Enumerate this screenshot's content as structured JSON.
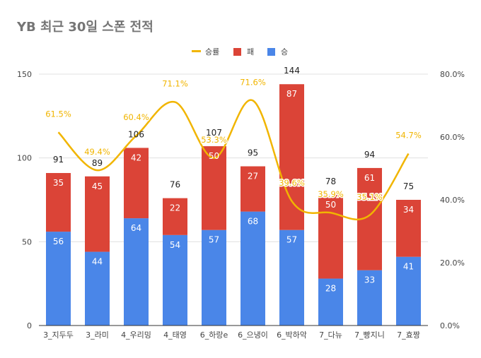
{
  "chart_data": {
    "type": "bar",
    "stacked": true,
    "title": "YB 최근 30일 스폰 전적",
    "categories": [
      "3_지두두",
      "3_라미",
      "4_우리밍",
      "4_태영",
      "6_하랑e",
      "6_으냉이",
      "6_박하악",
      "7_다뉴",
      "7_빵지니",
      "7_효짱"
    ],
    "series": [
      {
        "name": "승",
        "color": "#4a86e8",
        "values": [
          56,
          44,
          64,
          54,
          57,
          68,
          57,
          28,
          33,
          41
        ]
      },
      {
        "name": "패",
        "color": "#db4437",
        "values": [
          35,
          45,
          42,
          22,
          50,
          27,
          87,
          50,
          61,
          34
        ]
      }
    ],
    "totals": [
      91,
      89,
      106,
      76,
      107,
      95,
      144,
      78,
      94,
      75
    ],
    "line_series": {
      "name": "승률",
      "color": "#f1b500",
      "axis": "right",
      "values": [
        61.5,
        49.4,
        60.4,
        71.1,
        53.3,
        71.6,
        39.6,
        35.9,
        35.1,
        54.7
      ],
      "labels": [
        "61.5%",
        "49.4%",
        "60.4%",
        "71.1%",
        "53.3%",
        "71.6%",
        "39.6%",
        "35.9%",
        "35.1%",
        "54.7%"
      ]
    },
    "y_left": {
      "min": 0,
      "max": 150,
      "ticks": [
        0,
        50,
        100,
        150
      ]
    },
    "y_right": {
      "min": 0,
      "max": 80,
      "ticks": [
        0,
        20,
        40,
        60,
        80
      ],
      "tick_labels": [
        "0.0%",
        "20.0%",
        "40.0%",
        "60.0%",
        "80.0%"
      ]
    },
    "legend": {
      "position": "top",
      "items": [
        "승률",
        "패",
        "승"
      ]
    },
    "grid": true
  }
}
